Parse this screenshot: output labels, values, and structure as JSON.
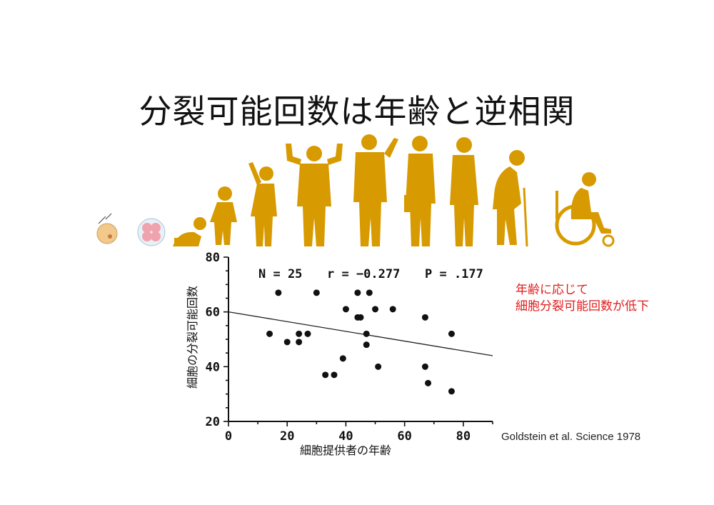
{
  "slide": {
    "title": "分裂可能回数は年齢と逆相関",
    "note_lines": [
      "年齢に応じて",
      "細胞分裂可能回数が低下"
    ],
    "citation": "Goldstein et al. Science 1978",
    "silhouette_color": "#d79a00",
    "note_color": "#e11b1b"
  },
  "chart_data": {
    "type": "scatter",
    "xlabel": "細胞提供者の年齢",
    "ylabel": "細胞の分裂可能回数",
    "xlim": [
      0,
      90
    ],
    "ylim": [
      20,
      80
    ],
    "xticks": [
      0,
      20,
      40,
      60,
      80
    ],
    "yticks": [
      20,
      40,
      60,
      80
    ],
    "stats": {
      "n": "N = 25",
      "r": "r = −0.277",
      "p": "P = .177"
    },
    "points": [
      {
        "x": 14,
        "y": 52
      },
      {
        "x": 17,
        "y": 67
      },
      {
        "x": 20,
        "y": 49
      },
      {
        "x": 24,
        "y": 52
      },
      {
        "x": 24,
        "y": 49
      },
      {
        "x": 27,
        "y": 52
      },
      {
        "x": 30,
        "y": 67
      },
      {
        "x": 33,
        "y": 37
      },
      {
        "x": 36,
        "y": 37
      },
      {
        "x": 39,
        "y": 43
      },
      {
        "x": 40,
        "y": 61
      },
      {
        "x": 44,
        "y": 67
      },
      {
        "x": 44,
        "y": 58
      },
      {
        "x": 45,
        "y": 58
      },
      {
        "x": 47,
        "y": 52
      },
      {
        "x": 47,
        "y": 48
      },
      {
        "x": 48,
        "y": 67
      },
      {
        "x": 50,
        "y": 61
      },
      {
        "x": 51,
        "y": 40
      },
      {
        "x": 56,
        "y": 61
      },
      {
        "x": 67,
        "y": 58
      },
      {
        "x": 67,
        "y": 40
      },
      {
        "x": 68,
        "y": 34
      },
      {
        "x": 76,
        "y": 52
      },
      {
        "x": 76,
        "y": 31
      }
    ],
    "trendline": {
      "x": [
        0,
        90
      ],
      "y": [
        60,
        44
      ]
    }
  }
}
